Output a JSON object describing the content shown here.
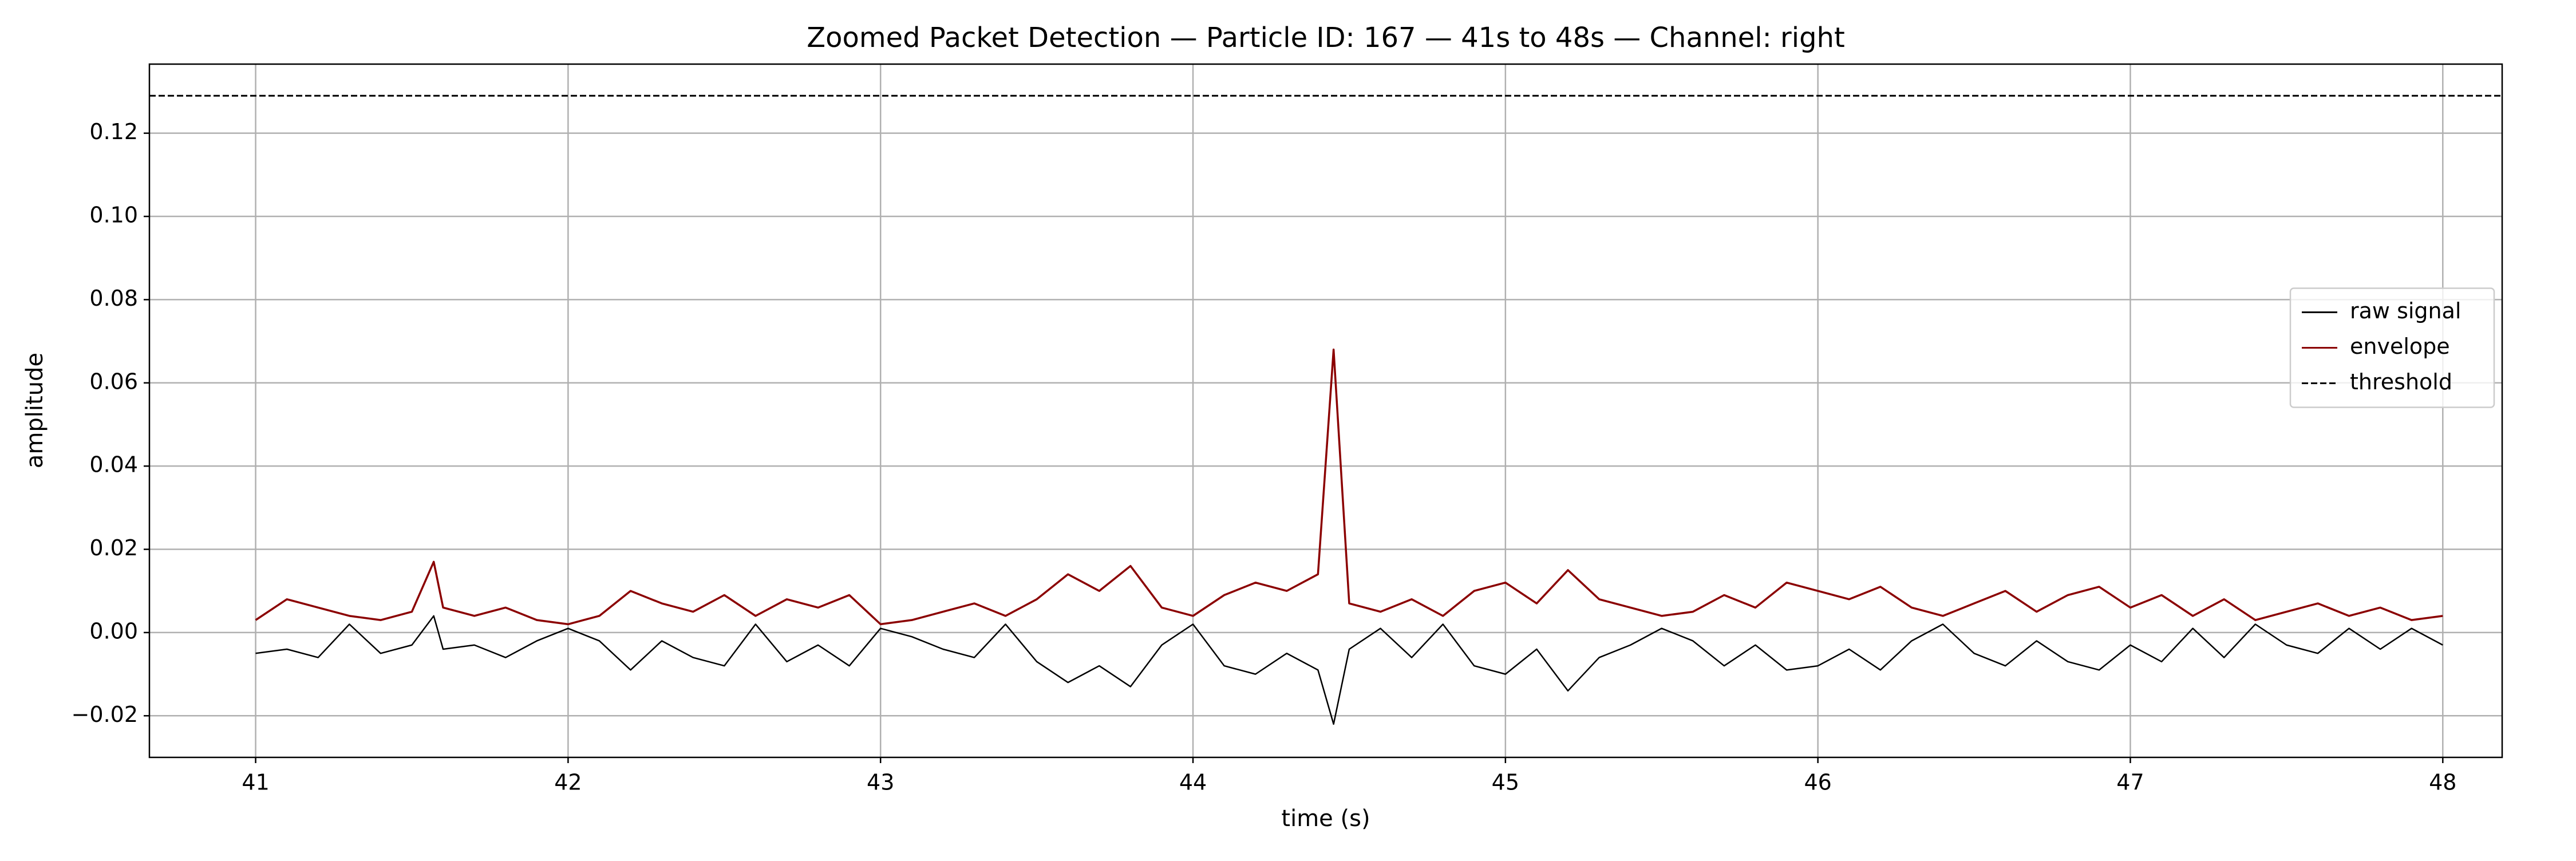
{
  "chart_data": {
    "type": "line",
    "title": "Zoomed Packet Detection — Particle ID: 167 — 41s to 48s — Channel: right",
    "x_label": "time (s)",
    "y_label": "amplitude",
    "x": [
      41.0,
      41.1,
      41.2,
      41.3,
      41.4,
      41.5,
      41.57,
      41.6,
      41.7,
      41.8,
      41.9,
      42.0,
      42.1,
      42.2,
      42.3,
      42.4,
      42.5,
      42.6,
      42.7,
      42.8,
      42.9,
      43.0,
      43.1,
      43.2,
      43.3,
      43.4,
      43.5,
      43.6,
      43.7,
      43.8,
      43.9,
      44.0,
      44.1,
      44.2,
      44.3,
      44.4,
      44.45,
      44.5,
      44.6,
      44.7,
      44.8,
      44.9,
      45.0,
      45.1,
      45.2,
      45.3,
      45.4,
      45.5,
      45.6,
      45.7,
      45.8,
      45.9,
      46.0,
      46.1,
      46.2,
      46.3,
      46.4,
      46.5,
      46.6,
      46.7,
      46.8,
      46.9,
      47.0,
      47.1,
      47.2,
      47.3,
      47.4,
      47.5,
      47.6,
      47.7,
      47.8,
      47.9,
      48.0
    ],
    "series": [
      {
        "name": "raw signal",
        "color": "#000000",
        "values": [
          -0.005,
          -0.004,
          -0.006,
          0.002,
          -0.005,
          -0.003,
          0.004,
          -0.004,
          -0.003,
          -0.006,
          -0.002,
          0.001,
          -0.002,
          -0.009,
          -0.002,
          -0.006,
          -0.008,
          0.002,
          -0.007,
          -0.003,
          -0.008,
          0.001,
          -0.001,
          -0.004,
          -0.006,
          0.002,
          -0.007,
          -0.012,
          -0.008,
          -0.013,
          -0.003,
          0.002,
          -0.008,
          -0.01,
          -0.005,
          -0.009,
          -0.022,
          -0.004,
          0.001,
          -0.006,
          0.002,
          -0.008,
          -0.01,
          -0.004,
          -0.014,
          -0.006,
          -0.003,
          0.001,
          -0.002,
          -0.008,
          -0.003,
          -0.009,
          -0.008,
          -0.004,
          -0.009,
          -0.002,
          0.002,
          -0.005,
          -0.008,
          -0.002,
          -0.007,
          -0.009,
          -0.003,
          -0.007,
          0.001,
          -0.006,
          0.002,
          -0.003,
          -0.005,
          0.001,
          -0.004,
          0.001,
          -0.003
        ]
      },
      {
        "name": "envelope",
        "color": "#8b0000",
        "values": [
          0.003,
          0.008,
          0.006,
          0.004,
          0.003,
          0.005,
          0.017,
          0.006,
          0.004,
          0.006,
          0.003,
          0.002,
          0.004,
          0.01,
          0.007,
          0.005,
          0.009,
          0.004,
          0.008,
          0.006,
          0.009,
          0.002,
          0.003,
          0.005,
          0.007,
          0.004,
          0.008,
          0.014,
          0.01,
          0.016,
          0.006,
          0.004,
          0.009,
          0.012,
          0.01,
          0.014,
          0.068,
          0.007,
          0.005,
          0.008,
          0.004,
          0.01,
          0.012,
          0.007,
          0.015,
          0.008,
          0.006,
          0.004,
          0.005,
          0.009,
          0.006,
          0.012,
          0.01,
          0.008,
          0.011,
          0.006,
          0.004,
          0.007,
          0.01,
          0.005,
          0.009,
          0.011,
          0.006,
          0.009,
          0.004,
          0.008,
          0.003,
          0.005,
          0.007,
          0.004,
          0.006,
          0.003,
          0.004
        ]
      }
    ],
    "hlines": [
      {
        "name": "threshold",
        "value": 0.129,
        "color": "#000000",
        "style": "dashed"
      }
    ],
    "xlim": [
      40.66,
      48.19
    ],
    "ylim": [
      -0.03,
      0.1366
    ],
    "xticks": [
      41,
      42,
      43,
      44,
      45,
      46,
      47,
      48
    ],
    "yticks": [
      {
        "value": -0.02,
        "label": "−0.02"
      },
      {
        "value": 0,
        "label": "0.00"
      },
      {
        "value": 0.02,
        "label": "0.02"
      },
      {
        "value": 0.04,
        "label": "0.04"
      },
      {
        "value": 0.06,
        "label": "0.06"
      },
      {
        "value": 0.08,
        "label": "0.08"
      },
      {
        "value": 0.1,
        "label": "0.10"
      },
      {
        "value": 0.12,
        "label": "0.12"
      }
    ],
    "grid": true,
    "grid_color": "#b0b0b0",
    "legend": "center right"
  }
}
